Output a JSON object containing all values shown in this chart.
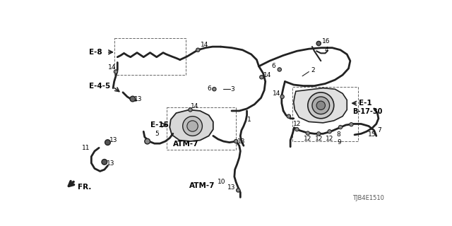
{
  "bg_color": "#ffffff",
  "line_color": "#222222",
  "figsize": [
    6.4,
    3.2
  ],
  "dpi": 100,
  "diagram_id": "TJB4E1510",
  "labels": {
    "E8": [
      76,
      42,
      "E-8"
    ],
    "E45": [
      58,
      108,
      "E-4-5"
    ],
    "E15": [
      193,
      167,
      "E-15"
    ],
    "E1": [
      549,
      138,
      "E-1"
    ],
    "B1730": [
      540,
      152,
      "B-17-30"
    ],
    "ATM7a": [
      208,
      210,
      "ATM-7"
    ],
    "ATM7b": [
      220,
      286,
      "ATM-7"
    ],
    "FR": [
      32,
      296,
      "FR."
    ],
    "diag_id": [
      572,
      314,
      "TJB4E1510"
    ]
  }
}
